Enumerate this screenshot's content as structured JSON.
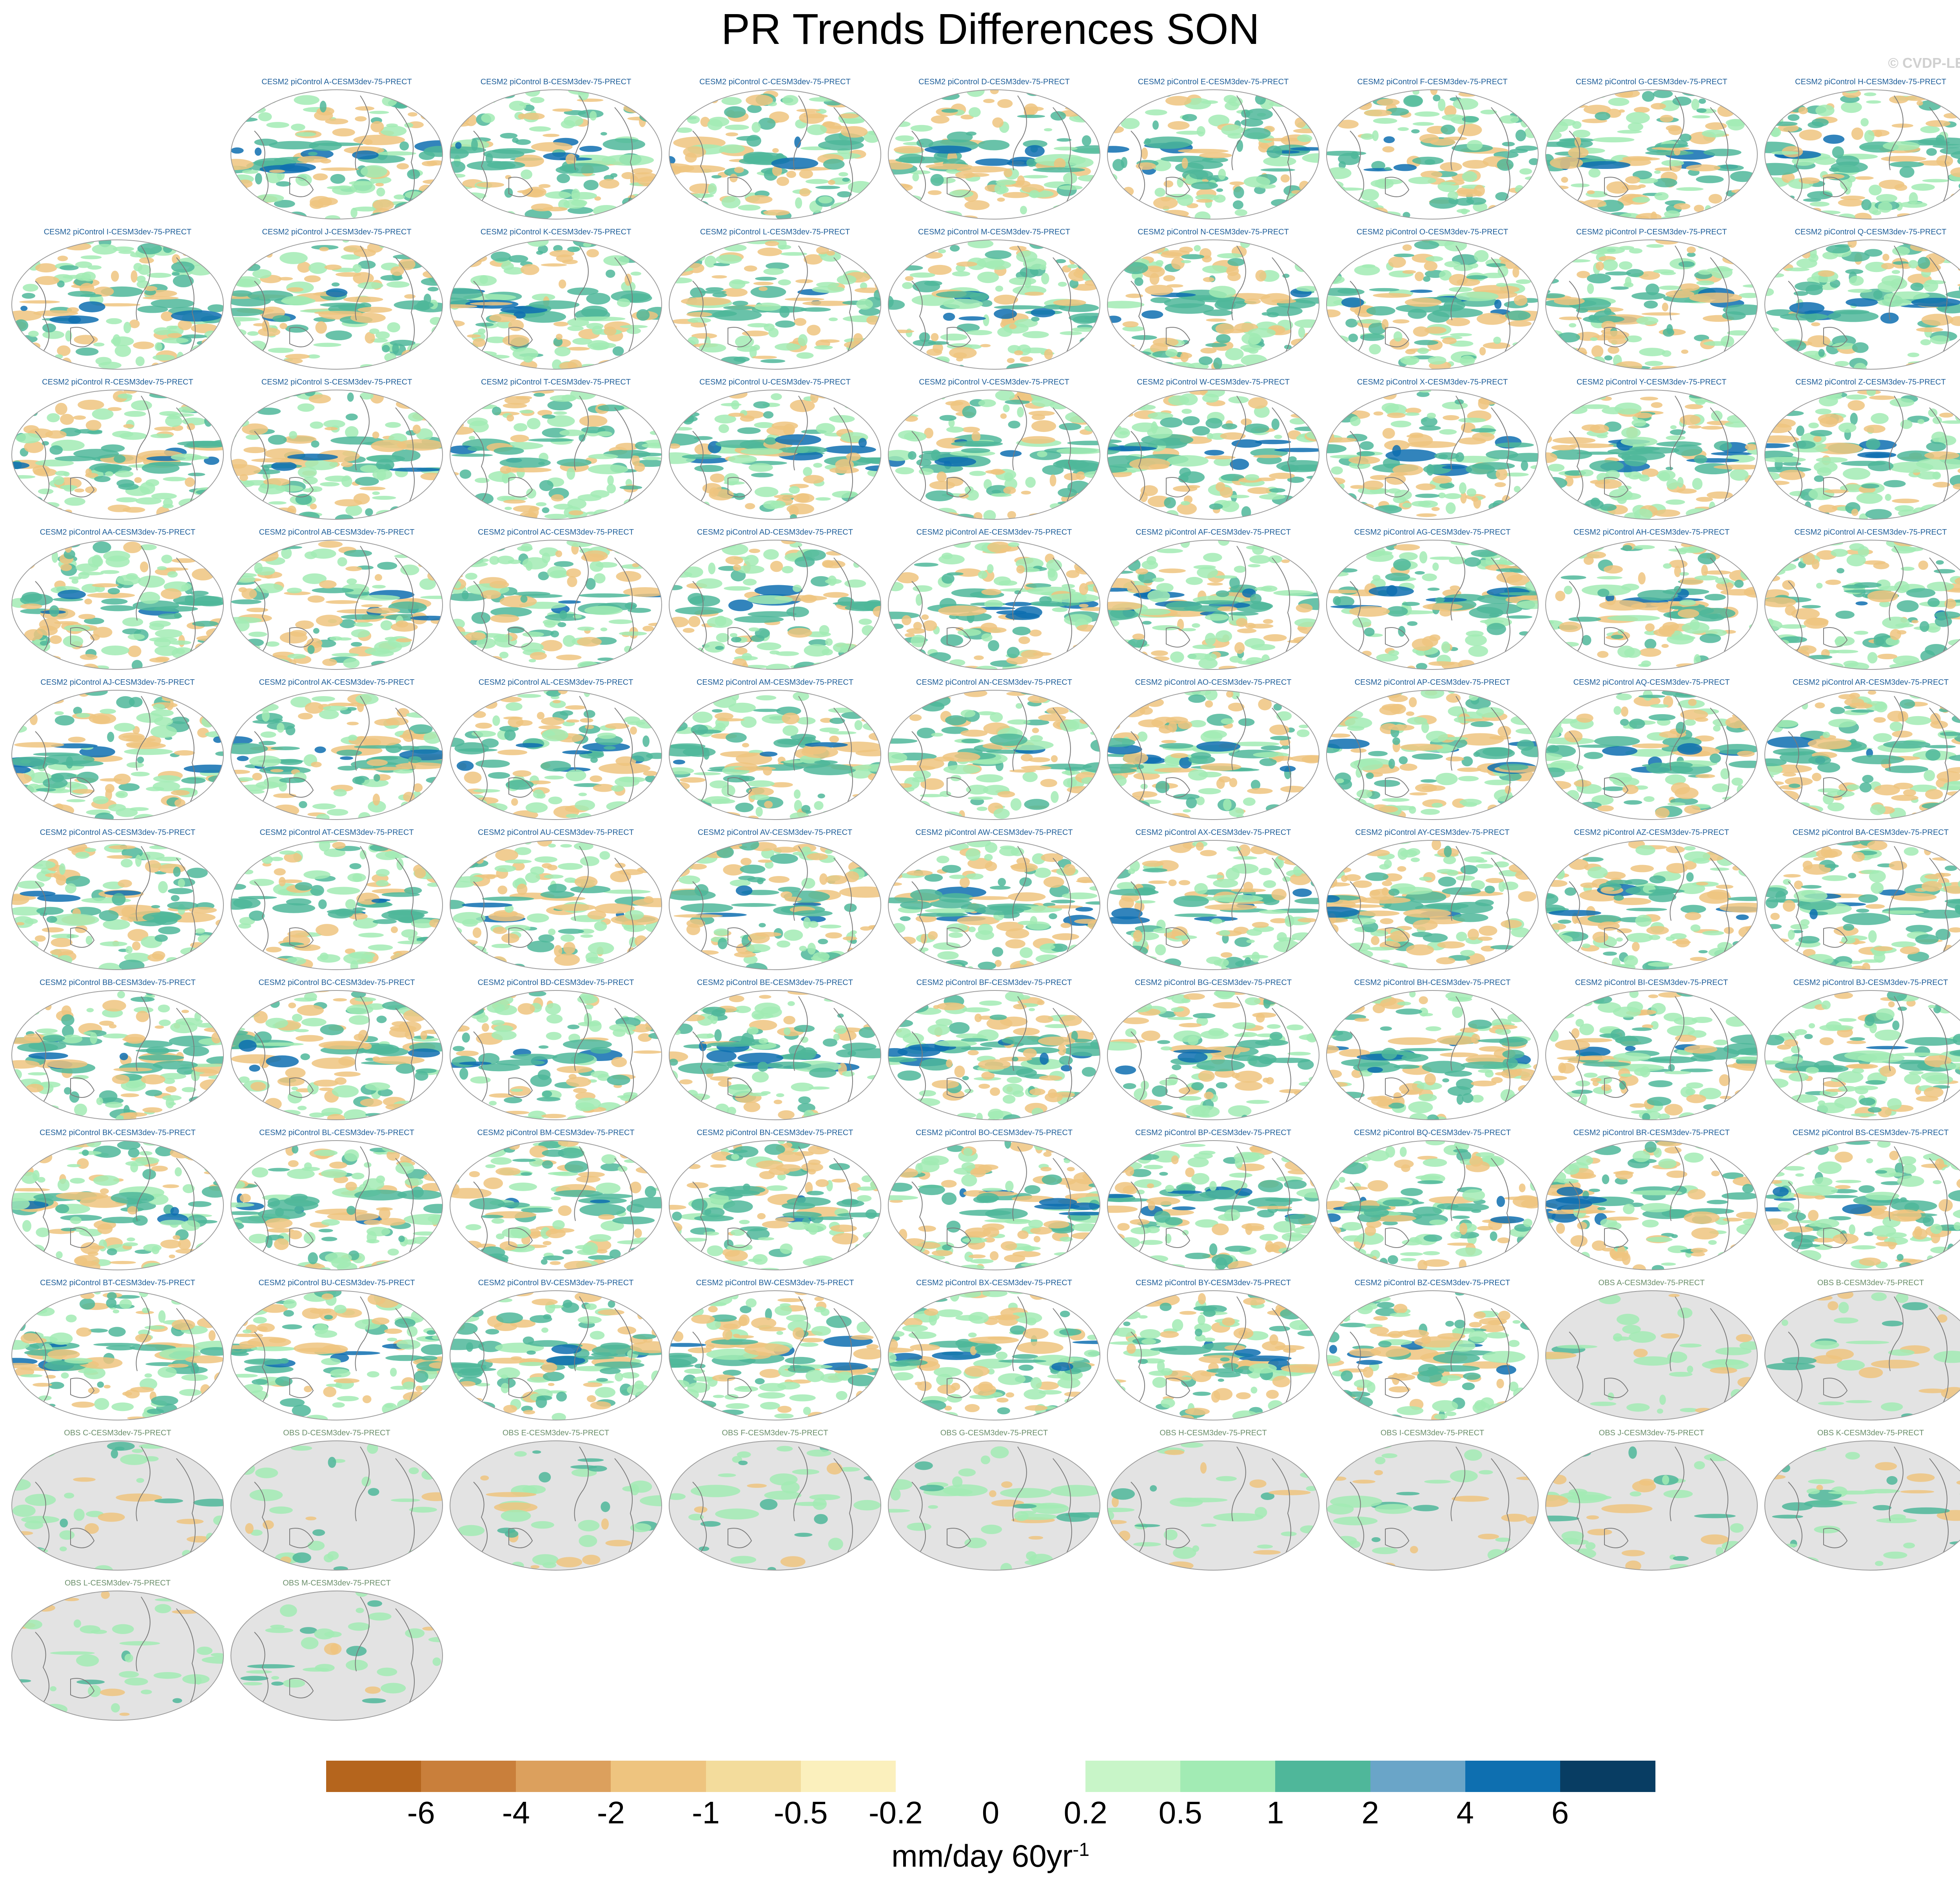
{
  "title": "PR Trends Differences SON",
  "watermark": "© CVDP-LE",
  "model_panels": [
    "CESM2 piControl A-CESM3dev-75-PRECT",
    "CESM2 piControl B-CESM3dev-75-PRECT",
    "CESM2 piControl C-CESM3dev-75-PRECT",
    "CESM2 piControl D-CESM3dev-75-PRECT",
    "CESM2 piControl E-CESM3dev-75-PRECT",
    "CESM2 piControl F-CESM3dev-75-PRECT",
    "CESM2 piControl G-CESM3dev-75-PRECT",
    "CESM2 piControl H-CESM3dev-75-PRECT",
    "CESM2 piControl I-CESM3dev-75-PRECT",
    "CESM2 piControl J-CESM3dev-75-PRECT",
    "CESM2 piControl K-CESM3dev-75-PRECT",
    "CESM2 piControl L-CESM3dev-75-PRECT",
    "CESM2 piControl M-CESM3dev-75-PRECT",
    "CESM2 piControl N-CESM3dev-75-PRECT",
    "CESM2 piControl O-CESM3dev-75-PRECT",
    "CESM2 piControl P-CESM3dev-75-PRECT",
    "CESM2 piControl Q-CESM3dev-75-PRECT",
    "CESM2 piControl R-CESM3dev-75-PRECT",
    "CESM2 piControl S-CESM3dev-75-PRECT",
    "CESM2 piControl T-CESM3dev-75-PRECT",
    "CESM2 piControl U-CESM3dev-75-PRECT",
    "CESM2 piControl V-CESM3dev-75-PRECT",
    "CESM2 piControl W-CESM3dev-75-PRECT",
    "CESM2 piControl X-CESM3dev-75-PRECT",
    "CESM2 piControl Y-CESM3dev-75-PRECT",
    "CESM2 piControl Z-CESM3dev-75-PRECT",
    "CESM2 piControl AA-CESM3dev-75-PRECT",
    "CESM2 piControl AB-CESM3dev-75-PRECT",
    "CESM2 piControl AC-CESM3dev-75-PRECT",
    "CESM2 piControl AD-CESM3dev-75-PRECT",
    "CESM2 piControl AE-CESM3dev-75-PRECT",
    "CESM2 piControl AF-CESM3dev-75-PRECT",
    "CESM2 piControl AG-CESM3dev-75-PRECT",
    "CESM2 piControl AH-CESM3dev-75-PRECT",
    "CESM2 piControl AI-CESM3dev-75-PRECT",
    "CESM2 piControl AJ-CESM3dev-75-PRECT",
    "CESM2 piControl AK-CESM3dev-75-PRECT",
    "CESM2 piControl AL-CESM3dev-75-PRECT",
    "CESM2 piControl AM-CESM3dev-75-PRECT",
    "CESM2 piControl AN-CESM3dev-75-PRECT",
    "CESM2 piControl AO-CESM3dev-75-PRECT",
    "CESM2 piControl AP-CESM3dev-75-PRECT",
    "CESM2 piControl AQ-CESM3dev-75-PRECT",
    "CESM2 piControl AR-CESM3dev-75-PRECT",
    "CESM2 piControl AS-CESM3dev-75-PRECT",
    "CESM2 piControl AT-CESM3dev-75-PRECT",
    "CESM2 piControl AU-CESM3dev-75-PRECT",
    "CESM2 piControl AV-CESM3dev-75-PRECT",
    "CESM2 piControl AW-CESM3dev-75-PRECT",
    "CESM2 piControl AX-CESM3dev-75-PRECT",
    "CESM2 piControl AY-CESM3dev-75-PRECT",
    "CESM2 piControl AZ-CESM3dev-75-PRECT",
    "CESM2 piControl BA-CESM3dev-75-PRECT",
    "CESM2 piControl BB-CESM3dev-75-PRECT",
    "CESM2 piControl BC-CESM3dev-75-PRECT",
    "CESM2 piControl BD-CESM3dev-75-PRECT",
    "CESM2 piControl BE-CESM3dev-75-PRECT",
    "CESM2 piControl BF-CESM3dev-75-PRECT",
    "CESM2 piControl BG-CESM3dev-75-PRECT",
    "CESM2 piControl BH-CESM3dev-75-PRECT",
    "CESM2 piControl BI-CESM3dev-75-PRECT",
    "CESM2 piControl BJ-CESM3dev-75-PRECT",
    "CESM2 piControl BK-CESM3dev-75-PRECT",
    "CESM2 piControl BL-CESM3dev-75-PRECT",
    "CESM2 piControl BM-CESM3dev-75-PRECT",
    "CESM2 piControl BN-CESM3dev-75-PRECT",
    "CESM2 piControl BO-CESM3dev-75-PRECT",
    "CESM2 piControl BP-CESM3dev-75-PRECT",
    "CESM2 piControl BQ-CESM3dev-75-PRECT",
    "CESM2 piControl BR-CESM3dev-75-PRECT",
    "CESM2 piControl BS-CESM3dev-75-PRECT",
    "CESM2 piControl BT-CESM3dev-75-PRECT",
    "CESM2 piControl BU-CESM3dev-75-PRECT",
    "CESM2 piControl BV-CESM3dev-75-PRECT",
    "CESM2 piControl BW-CESM3dev-75-PRECT",
    "CESM2 piControl BX-CESM3dev-75-PRECT",
    "CESM2 piControl BY-CESM3dev-75-PRECT",
    "CESM2 piControl BZ-CESM3dev-75-PRECT"
  ],
  "obs_panels": [
    "OBS A-CESM3dev-75-PRECT",
    "OBS B-CESM3dev-75-PRECT",
    "OBS C-CESM3dev-75-PRECT",
    "OBS D-CESM3dev-75-PRECT",
    "OBS E-CESM3dev-75-PRECT",
    "OBS F-CESM3dev-75-PRECT",
    "OBS G-CESM3dev-75-PRECT",
    "OBS H-CESM3dev-75-PRECT",
    "OBS I-CESM3dev-75-PRECT",
    "OBS J-CESM3dev-75-PRECT",
    "OBS K-CESM3dev-75-PRECT",
    "OBS L-CESM3dev-75-PRECT",
    "OBS M-CESM3dev-75-PRECT"
  ],
  "colorbar": {
    "colors": [
      "#b5651d",
      "#c97f3b",
      "#dca05d",
      "#eec47f",
      "#f3dc9c",
      "#fbf0bd",
      "#ffffff",
      "#ffffff",
      "#c8f5c8",
      "#a2ebb4",
      "#4fb79a",
      "#6aa5c8",
      "#0e6fb0",
      "#083d63"
    ],
    "ticks": [
      "-6",
      "-4",
      "-2",
      "-1",
      "-0.5",
      "-0.2",
      "0",
      "0.2",
      "0.5",
      "1",
      "2",
      "4",
      "6"
    ],
    "units": "mm/day 60yr",
    "units_superscript": "-1"
  },
  "map_colors": {
    "ocean_model": "#ffffff",
    "ocean_obs": "#e3e3e3",
    "coast": "#7a7a7a",
    "dry": "#eec47f",
    "wet": "#4fb79a",
    "very_wet": "#0e6fb0",
    "light_wet": "#a2ebb4"
  }
}
